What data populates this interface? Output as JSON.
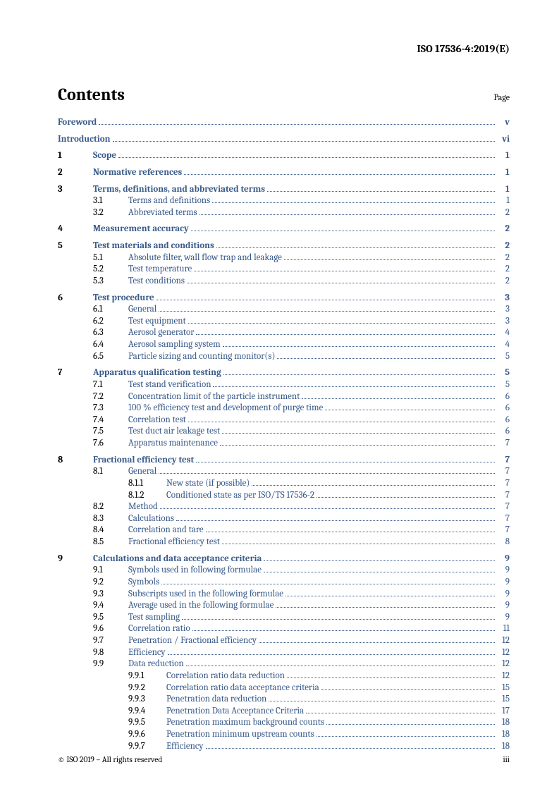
{
  "doc_id": "ISO 17536-4:2019(E)",
  "contents_title": "Contents",
  "page_label": "Page",
  "footer_left": "© ISO 2019 – All rights reserved",
  "footer_right": "iii",
  "link_color": "#3a5b8a",
  "toc": [
    {
      "type": "l0",
      "title": "Foreword",
      "page": "v",
      "bold": true,
      "gap_after": true
    },
    {
      "type": "l0",
      "title": "Introduction",
      "page": "vi",
      "bold": true,
      "gap_after": true
    },
    {
      "type": "l1",
      "num": "1",
      "title": "Scope",
      "page": "1",
      "bold": true,
      "gap_after": true
    },
    {
      "type": "l1",
      "num": "2",
      "title": "Normative references",
      "page": "1",
      "bold": true,
      "gap_after": true
    },
    {
      "type": "l1",
      "num": "3",
      "title": "Terms, definitions, and abbreviated terms",
      "page": "1",
      "bold": true
    },
    {
      "type": "l2",
      "num": "3.1",
      "title": "Terms and definitions",
      "page": "1"
    },
    {
      "type": "l2",
      "num": "3.2",
      "title": "Abbreviated terms",
      "page": "2",
      "gap_after": true
    },
    {
      "type": "l1",
      "num": "4",
      "title": "Measurement accuracy",
      "page": "2",
      "bold": true,
      "gap_after": true
    },
    {
      "type": "l1",
      "num": "5",
      "title": "Test materials and conditions",
      "page": "2",
      "bold": true
    },
    {
      "type": "l2",
      "num": "5.1",
      "title": "Absolute filter, wall flow trap and leakage",
      "page": "2"
    },
    {
      "type": "l2",
      "num": "5.2",
      "title": "Test temperature",
      "page": "2"
    },
    {
      "type": "l2",
      "num": "5.3",
      "title": "Test conditions",
      "page": "2",
      "gap_after": true
    },
    {
      "type": "l1",
      "num": "6",
      "title": "Test procedure",
      "page": "3",
      "bold": true
    },
    {
      "type": "l2",
      "num": "6.1",
      "title": "General",
      "page": "3"
    },
    {
      "type": "l2",
      "num": "6.2",
      "title": "Test equipment",
      "page": "3"
    },
    {
      "type": "l2",
      "num": "6.3",
      "title": "Aerosol generator",
      "page": "4"
    },
    {
      "type": "l2",
      "num": "6.4",
      "title": "Aerosol sampling system",
      "page": "4"
    },
    {
      "type": "l2",
      "num": "6.5",
      "title": "Particle sizing and counting monitor(s)",
      "page": "5",
      "gap_after": true
    },
    {
      "type": "l1",
      "num": "7",
      "title": "Apparatus qualification testing",
      "page": "5",
      "bold": true
    },
    {
      "type": "l2",
      "num": "7.1",
      "title": "Test stand verification",
      "page": "5"
    },
    {
      "type": "l2",
      "num": "7.2",
      "title": "Concentration limit of the particle instrument",
      "page": "6"
    },
    {
      "type": "l2",
      "num": "7.3",
      "title": "100 % efficiency test and development of purge time",
      "page": "6"
    },
    {
      "type": "l2",
      "num": "7.4",
      "title": "Correlation test",
      "page": "6"
    },
    {
      "type": "l2",
      "num": "7.5",
      "title": "Test duct air leakage test",
      "page": "6"
    },
    {
      "type": "l2",
      "num": "7.6",
      "title": "Apparatus maintenance",
      "page": "7",
      "gap_after": true
    },
    {
      "type": "l1",
      "num": "8",
      "title": "Fractional efficiency test",
      "page": "7",
      "bold": true
    },
    {
      "type": "l2",
      "num": "8.1",
      "title": "General",
      "page": "7"
    },
    {
      "type": "l3",
      "num": "8.1.1",
      "title": "New state (if possible)",
      "page": "7"
    },
    {
      "type": "l3",
      "num": "8.1.2",
      "title": "Conditioned state as per ISO/TS 17536-2",
      "page": "7"
    },
    {
      "type": "l2",
      "num": "8.2",
      "title": "Method",
      "page": "7"
    },
    {
      "type": "l2",
      "num": "8.3",
      "title": "Calculations",
      "page": "7"
    },
    {
      "type": "l2",
      "num": "8.4",
      "title": "Correlation and tare",
      "page": "7"
    },
    {
      "type": "l2",
      "num": "8.5",
      "title": "Fractional efficiency test",
      "page": "8",
      "gap_after": true
    },
    {
      "type": "l1",
      "num": "9",
      "title": "Calculations and data acceptance criteria",
      "page": "9",
      "bold": true
    },
    {
      "type": "l2",
      "num": "9.1",
      "title": "Symbols used in following formulae",
      "page": "9"
    },
    {
      "type": "l2",
      "num": "9.2",
      "title": "Symbols",
      "page": "9"
    },
    {
      "type": "l2",
      "num": "9.3",
      "title": "Subscripts used in the following formulae",
      "page": "9"
    },
    {
      "type": "l2",
      "num": "9.4",
      "title": "Average used in the following formulae",
      "page": "9"
    },
    {
      "type": "l2",
      "num": "9.5",
      "title": "Test sampling",
      "page": "9"
    },
    {
      "type": "l2",
      "num": "9.6",
      "title": "Correlation ratio",
      "page": "11"
    },
    {
      "type": "l2",
      "num": "9.7",
      "title": "Penetration / Fractional efficiency",
      "page": "12"
    },
    {
      "type": "l2",
      "num": "9.8",
      "title": "Efficiency",
      "page": "12"
    },
    {
      "type": "l2",
      "num": "9.9",
      "title": "Data reduction",
      "page": "12"
    },
    {
      "type": "l3",
      "num": "9.9.1",
      "title": "Correlation ratio data reduction",
      "page": "12"
    },
    {
      "type": "l3",
      "num": "9.9.2",
      "title": "Correlation ratio data acceptance criteria",
      "page": "15"
    },
    {
      "type": "l3",
      "num": "9.9.3",
      "title": "Penetration data reduction",
      "page": "15"
    },
    {
      "type": "l3",
      "num": "9.9.4",
      "title": "Penetration Data Acceptance Criteria",
      "page": "17"
    },
    {
      "type": "l3",
      "num": "9.9.5",
      "title": "Penetration maximum background counts",
      "page": "18"
    },
    {
      "type": "l3",
      "num": "9.9.6",
      "title": "Penetration minimum upstream counts",
      "page": "18"
    },
    {
      "type": "l3",
      "num": "9.9.7",
      "title": "Efficiency",
      "page": "18"
    }
  ]
}
